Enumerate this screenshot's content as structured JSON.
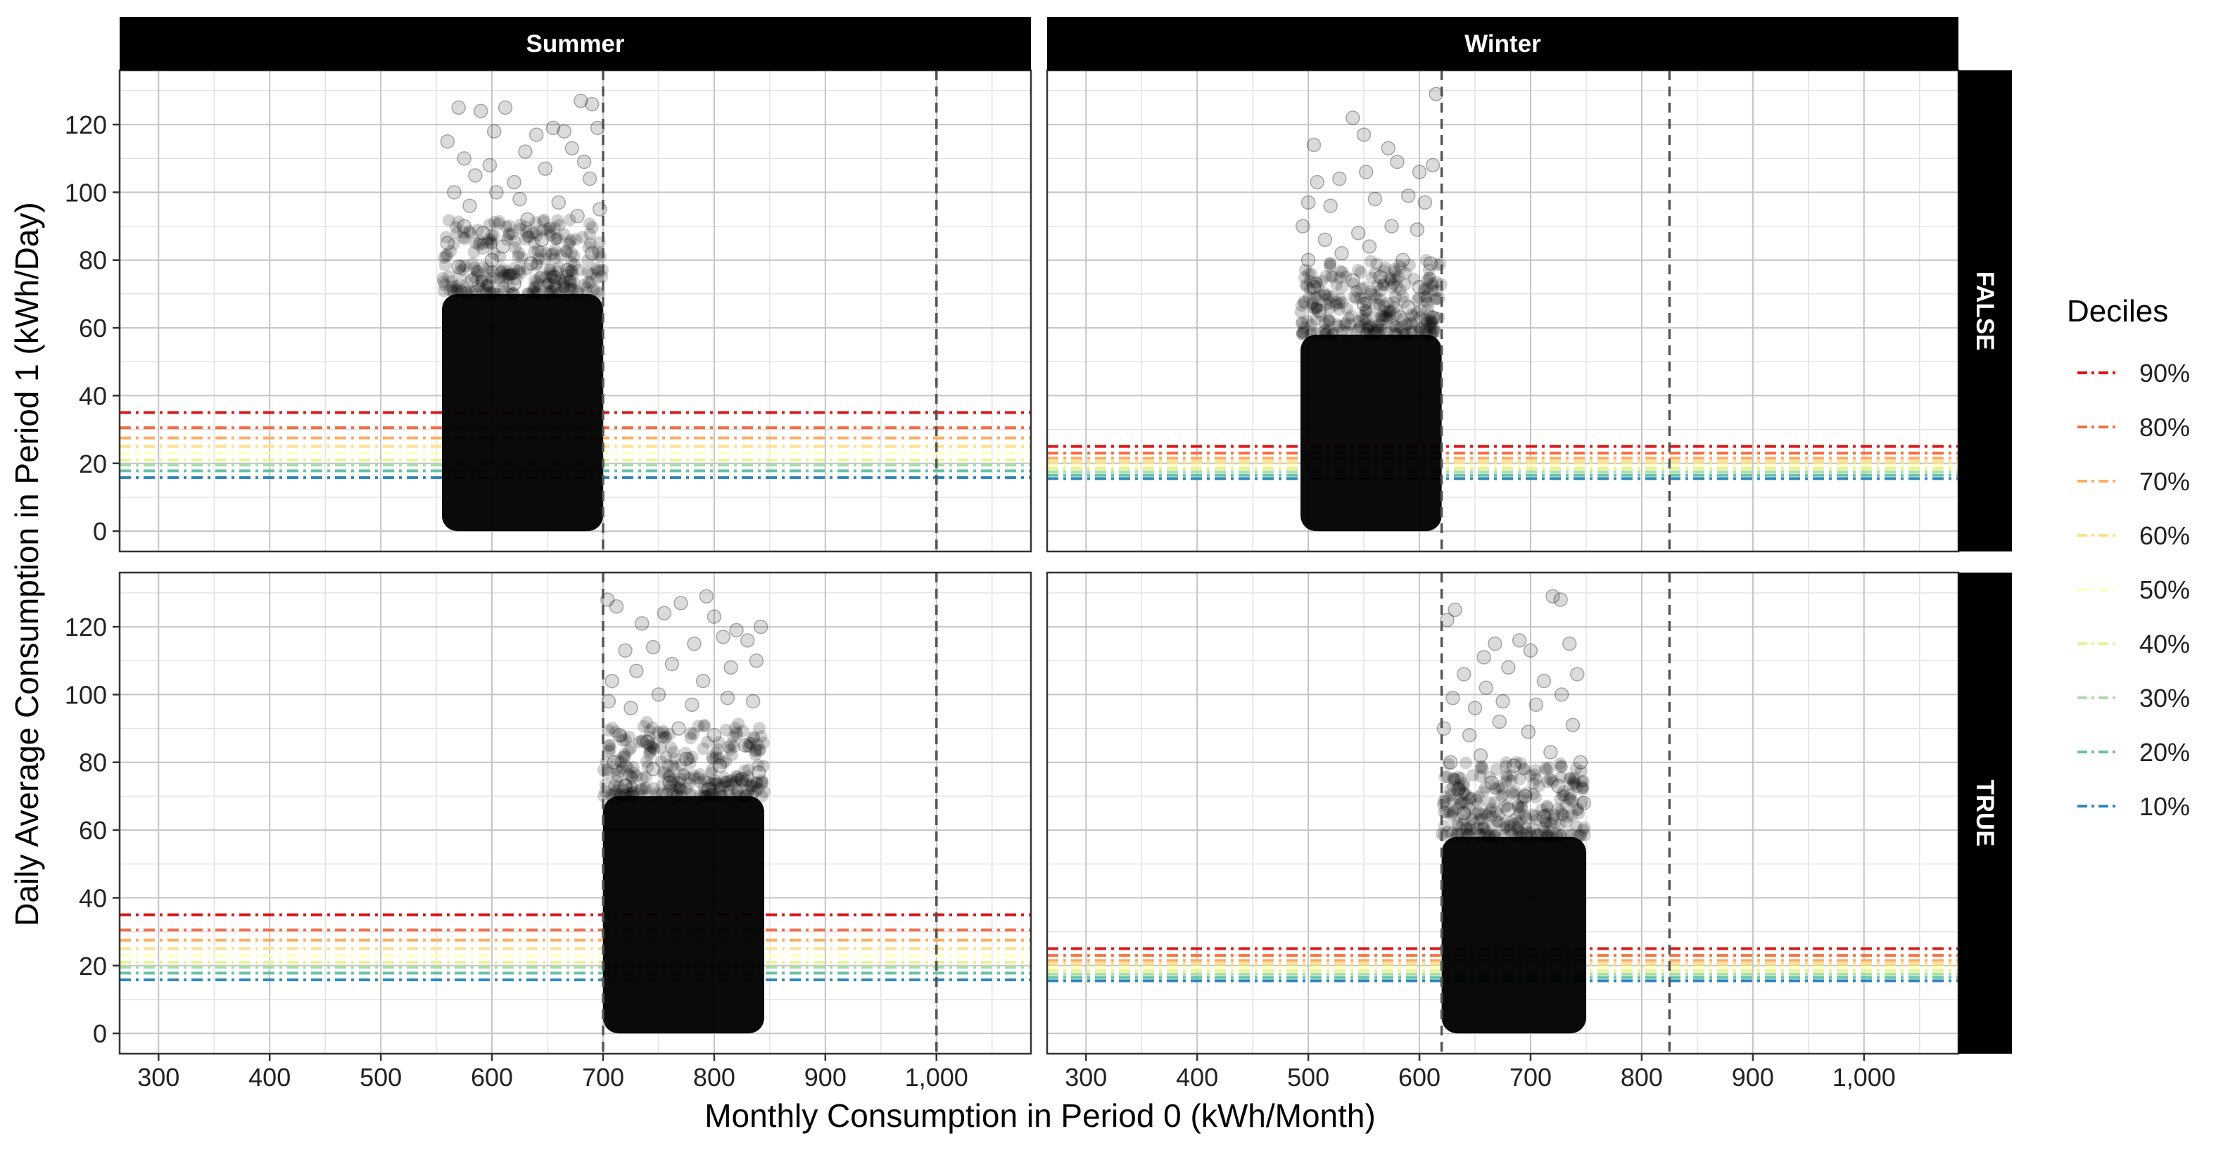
{
  "chart_data": {
    "type": "scatter",
    "facets": {
      "columns": [
        "Summer",
        "Winter"
      ],
      "rows": [
        "FALSE",
        "TRUE"
      ]
    },
    "xlabel": "Monthly Consumption in Period 0 (kWh/Month)",
    "ylabel": "Daily Average Consumption in Period 1 (kWh/Day)",
    "xlim": [
      265,
      1085
    ],
    "ylim": [
      -6,
      136
    ],
    "x_ticks": [
      300,
      400,
      500,
      600,
      700,
      800,
      900,
      1000
    ],
    "x_tick_labels": [
      "300",
      "400",
      "500",
      "600",
      "700",
      "800",
      "900",
      "1,000"
    ],
    "y_ticks": [
      0,
      20,
      40,
      60,
      80,
      100,
      120
    ],
    "y_tick_labels": [
      "0",
      "20",
      "40",
      "60",
      "80",
      "100",
      "120"
    ],
    "grid": true,
    "legend": {
      "title": "Deciles",
      "placement": "right",
      "entries": [
        "90%",
        "80%",
        "70%",
        "60%",
        "50%",
        "40%",
        "30%",
        "20%",
        "10%"
      ],
      "colors": [
        "#d7191c",
        "#f46d43",
        "#fdae61",
        "#fee08b",
        "#ffffbf",
        "#e6f598",
        "#abdda4",
        "#66c2a5",
        "#3288bd"
      ]
    },
    "panels": [
      {
        "season": "Summer",
        "group": "FALSE",
        "vlines": [
          700,
          1000
        ],
        "cloud_x": [
          555,
          700
        ],
        "dense_y_max": 70,
        "decile_values": [
          35,
          30.5,
          27.5,
          25,
          23,
          21,
          19.5,
          17.8,
          15.8
        ],
        "outliers": [
          [
            570,
            125
          ],
          [
            590,
            124
          ],
          [
            612,
            125
          ],
          [
            680,
            127
          ],
          [
            690,
            126
          ],
          [
            695,
            119
          ],
          [
            560,
            115
          ],
          [
            575,
            110
          ],
          [
            602,
            118
          ],
          [
            630,
            112
          ],
          [
            640,
            117
          ],
          [
            655,
            119
          ],
          [
            665,
            118
          ],
          [
            672,
            113
          ],
          [
            585,
            105
          ],
          [
            598,
            108
          ],
          [
            620,
            103
          ],
          [
            648,
            107
          ],
          [
            683,
            109
          ],
          [
            566,
            100
          ],
          [
            580,
            96
          ],
          [
            604,
            100
          ],
          [
            625,
            98
          ],
          [
            660,
            97
          ],
          [
            688,
            104
          ],
          [
            575,
            90
          ],
          [
            592,
            88
          ],
          [
            632,
            92
          ],
          [
            677,
            93
          ],
          [
            697,
            95
          ],
          [
            560,
            85
          ],
          [
            610,
            84
          ],
          [
            645,
            86
          ],
          [
            690,
            82
          ],
          [
            570,
            78
          ],
          [
            600,
            80
          ],
          [
            635,
            79
          ],
          [
            668,
            77
          ],
          [
            582,
            74
          ],
          [
            620,
            73
          ],
          [
            656,
            75
          ]
        ]
      },
      {
        "season": "Winter",
        "group": "FALSE",
        "vlines": [
          620,
          825
        ],
        "cloud_x": [
          493,
          620
        ],
        "dense_y_max": 58,
        "decile_values": [
          25,
          23,
          21.5,
          20.5,
          19.5,
          18.5,
          17.5,
          16.5,
          15.5
        ],
        "outliers": [
          [
            540,
            122
          ],
          [
            505,
            114
          ],
          [
            550,
            117
          ],
          [
            572,
            113
          ],
          [
            615,
            129
          ],
          [
            508,
            103
          ],
          [
            528,
            104
          ],
          [
            552,
            106
          ],
          [
            580,
            109
          ],
          [
            600,
            106
          ],
          [
            612,
            108
          ],
          [
            500,
            97
          ],
          [
            520,
            96
          ],
          [
            560,
            98
          ],
          [
            590,
            99
          ],
          [
            605,
            97
          ],
          [
            495,
            90
          ],
          [
            515,
            86
          ],
          [
            545,
            88
          ],
          [
            575,
            90
          ],
          [
            598,
            89
          ],
          [
            500,
            80
          ],
          [
            530,
            82
          ],
          [
            555,
            84
          ],
          [
            585,
            80
          ],
          [
            610,
            79
          ],
          [
            505,
            72
          ],
          [
            540,
            74
          ],
          [
            565,
            75
          ],
          [
            600,
            72
          ],
          [
            510,
            65
          ],
          [
            550,
            67
          ],
          [
            590,
            66
          ],
          [
            612,
            63
          ]
        ]
      },
      {
        "season": "Summer",
        "group": "TRUE",
        "vlines": [
          700,
          1000
        ],
        "cloud_x": [
          700,
          845
        ],
        "dense_y_max": 70,
        "decile_values": [
          35,
          30.5,
          27.5,
          25,
          23,
          21,
          19.5,
          17.8,
          15.8
        ],
        "outliers": [
          [
            704,
            128
          ],
          [
            712,
            126
          ],
          [
            770,
            127
          ],
          [
            793,
            129
          ],
          [
            735,
            121
          ],
          [
            755,
            124
          ],
          [
            800,
            123
          ],
          [
            820,
            119
          ],
          [
            842,
            120
          ],
          [
            720,
            113
          ],
          [
            745,
            114
          ],
          [
            782,
            115
          ],
          [
            808,
            117
          ],
          [
            830,
            116
          ],
          [
            708,
            104
          ],
          [
            730,
            107
          ],
          [
            762,
            109
          ],
          [
            790,
            104
          ],
          [
            815,
            108
          ],
          [
            838,
            110
          ],
          [
            705,
            98
          ],
          [
            725,
            96
          ],
          [
            750,
            100
          ],
          [
            780,
            97
          ],
          [
            812,
            99
          ],
          [
            835,
            98
          ],
          [
            715,
            88
          ],
          [
            740,
            86
          ],
          [
            768,
            90
          ],
          [
            800,
            88
          ],
          [
            828,
            85
          ],
          [
            710,
            80
          ],
          [
            745,
            78
          ],
          [
            775,
            81
          ],
          [
            805,
            79
          ],
          [
            840,
            77
          ],
          [
            720,
            73
          ],
          [
            760,
            74
          ],
          [
            795,
            72
          ],
          [
            825,
            75
          ]
        ]
      },
      {
        "season": "Winter",
        "group": "TRUE",
        "vlines": [
          620,
          825
        ],
        "cloud_x": [
          620,
          750
        ],
        "dense_y_max": 58,
        "decile_values": [
          25,
          23,
          21.5,
          20.5,
          19.5,
          18.5,
          17.5,
          16.5,
          15.5
        ],
        "outliers": [
          [
            625,
            122
          ],
          [
            632,
            125
          ],
          [
            720,
            129
          ],
          [
            727,
            128
          ],
          [
            658,
            111
          ],
          [
            668,
            115
          ],
          [
            690,
            116
          ],
          [
            700,
            113
          ],
          [
            735,
            115
          ],
          [
            640,
            106
          ],
          [
            660,
            102
          ],
          [
            680,
            108
          ],
          [
            712,
            104
          ],
          [
            742,
            106
          ],
          [
            630,
            99
          ],
          [
            650,
            96
          ],
          [
            675,
            98
          ],
          [
            705,
            97
          ],
          [
            728,
            100
          ],
          [
            622,
            90
          ],
          [
            645,
            88
          ],
          [
            672,
            92
          ],
          [
            698,
            89
          ],
          [
            738,
            91
          ],
          [
            628,
            80
          ],
          [
            655,
            82
          ],
          [
            685,
            79
          ],
          [
            718,
            83
          ],
          [
            745,
            80
          ],
          [
            635,
            72
          ],
          [
            665,
            74
          ],
          [
            695,
            70
          ],
          [
            725,
            73
          ],
          [
            748,
            68
          ],
          [
            640,
            65
          ],
          [
            680,
            66
          ],
          [
            712,
            64
          ]
        ]
      }
    ]
  }
}
